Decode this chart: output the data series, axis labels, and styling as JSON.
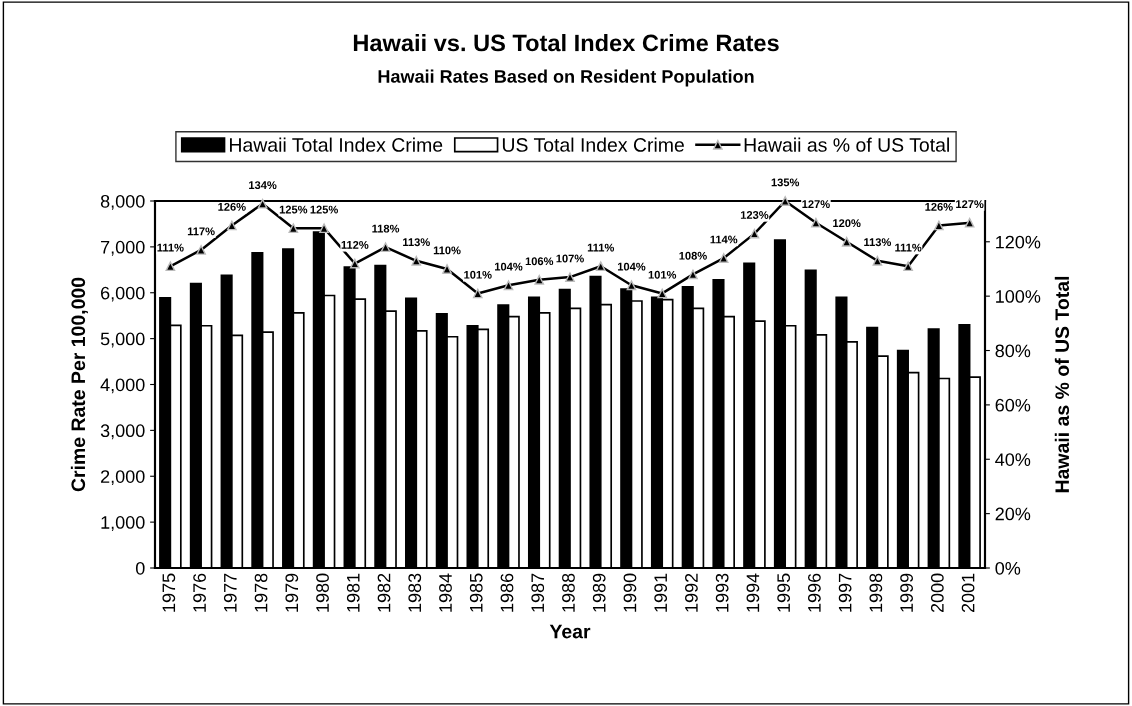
{
  "chart_data": {
    "type": "bar",
    "title": "Hawaii vs. US Total Index Crime Rates",
    "subtitle": "Hawaii Rates Based on Resident Population",
    "xlabel": "Year",
    "ylabel": "Crime Rate Per 100,000",
    "y2label": "Hawaii as % of US Total",
    "categories": [
      "1975",
      "1976",
      "1977",
      "1978",
      "1979",
      "1980",
      "1981",
      "1982",
      "1983",
      "1984",
      "1985",
      "1986",
      "1987",
      "1988",
      "1989",
      "1990",
      "1991",
      "1992",
      "1993",
      "1994",
      "1995",
      "1996",
      "1997",
      "1998",
      "1999",
      "2000",
      "2001"
    ],
    "series": [
      {
        "name": "Hawaii Total Index Crime",
        "color": "#000000",
        "values": [
          5890,
          6200,
          6380,
          6870,
          6950,
          7320,
          6560,
          6590,
          5880,
          5540,
          5280,
          5730,
          5900,
          6070,
          6350,
          6080,
          5900,
          6130,
          6280,
          6640,
          7150,
          6490,
          5900,
          5240,
          4740,
          5210,
          5300
        ]
      },
      {
        "name": "US Total Index Crime",
        "color": "#ffffff",
        "values": [
          5290,
          5280,
          5070,
          5140,
          5560,
          5940,
          5860,
          5600,
          5170,
          5040,
          5200,
          5480,
          5560,
          5660,
          5740,
          5820,
          5850,
          5660,
          5480,
          5380,
          5280,
          5080,
          4930,
          4620,
          4260,
          4130,
          4160
        ]
      },
      {
        "name": "Hawaii as % of US Total",
        "type": "line",
        "axis": "y2",
        "color": "#000000",
        "marker": "triangle",
        "values": [
          111,
          117,
          126,
          134,
          125,
          125,
          112,
          118,
          113,
          110,
          101,
          104,
          106,
          107,
          111,
          104,
          101,
          108,
          114,
          123,
          135,
          127,
          120,
          113,
          111,
          126,
          127
        ],
        "value_labels": [
          "111%",
          "117%",
          "126%",
          "134%",
          "125%",
          "125%",
          "112%",
          "118%",
          "113%",
          "110%",
          "101%",
          "104%",
          "106%",
          "107%",
          "111%",
          "104%",
          "101%",
          "108%",
          "114%",
          "123%",
          "135%",
          "127%",
          "120%",
          "113%",
          "111%",
          "126%",
          "127%"
        ]
      }
    ],
    "ylim": [
      0,
      8000
    ],
    "yticks": [
      0,
      {
        "value": 1000,
        "label": "1,000"
      },
      {
        "value": 2000,
        "label": "2,000"
      },
      {
        "value": 3000,
        "label": "3,000"
      },
      {
        "value": 4000,
        "label": "4,000"
      },
      {
        "value": 5000,
        "label": "5,000"
      },
      {
        "value": 6000,
        "label": "6,000"
      },
      {
        "value": 7000,
        "label": "7,000"
      },
      {
        "value": 8000,
        "label": "8,000"
      }
    ],
    "y2lim": [
      0,
      135
    ],
    "y2ticks": [
      {
        "value": 0,
        "label": "0%"
      },
      {
        "value": 20,
        "label": "20%"
      },
      {
        "value": 40,
        "label": "40%"
      },
      {
        "value": 60,
        "label": "60%"
      },
      {
        "value": 80,
        "label": "80%"
      },
      {
        "value": 100,
        "label": "100%"
      },
      {
        "value": 120,
        "label": "120%"
      }
    ],
    "legend": "top",
    "grid": false
  }
}
